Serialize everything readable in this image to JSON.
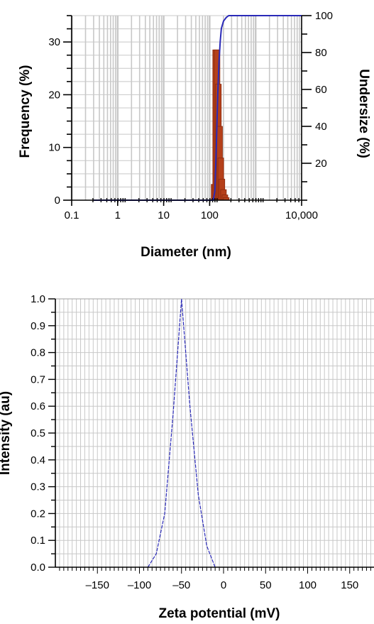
{
  "chart_data": [
    {
      "type": "bar",
      "description_series": "size distribution histogram with cumulative undersize line",
      "xlabel": "Diameter (nm)",
      "ylabel": "Frequency (%)",
      "y2label": "Undersize (%)",
      "x_scale": "log",
      "xlim": [
        0.1,
        10000
      ],
      "ylim": [
        0,
        35
      ],
      "y2lim": [
        0,
        100
      ],
      "x_tick_labels": [
        "0.1",
        "1",
        "10",
        "100",
        "10,000"
      ],
      "x_tick_values": [
        0.1,
        1,
        10,
        100,
        10000
      ],
      "y_tick_labels": [
        "0",
        "10",
        "20",
        "30"
      ],
      "y_tick_values": [
        0,
        10,
        20,
        30
      ],
      "y2_tick_labels": [
        "20",
        "40",
        "60",
        "80",
        "100"
      ],
      "y2_tick_values": [
        20,
        40,
        60,
        80,
        100
      ],
      "grid": true,
      "bars": {
        "color": "#b5401a",
        "x": [
          125,
          135,
          145,
          155,
          165,
          175,
          185,
          200,
          215,
          230
        ],
        "values": [
          3,
          28.5,
          28.5,
          22,
          14,
          8,
          4,
          2,
          1,
          0.5
        ]
      },
      "line": {
        "color": "#2a2ab8",
        "x": [
          0.3,
          100,
          120,
          130,
          140,
          150,
          160,
          170,
          180,
          200,
          230,
          260,
          300,
          10000
        ],
        "values": [
          0,
          0,
          0,
          5,
          30,
          57,
          75,
          86,
          93,
          97,
          99,
          100,
          100,
          100
        ]
      }
    },
    {
      "type": "line",
      "xlabel": "Zeta potential (mV)",
      "ylabel": "Intensity (au)",
      "xlim": [
        -200,
        200
      ],
      "ylim": [
        0,
        1.0
      ],
      "x_tick_labels": [
        "–150",
        "–100",
        "–50",
        "0",
        "50",
        "100",
        "150"
      ],
      "x_tick_values": [
        -150,
        -100,
        -50,
        0,
        50,
        100,
        150
      ],
      "y_tick_labels": [
        "0.0",
        "0.1",
        "0.2",
        "0.3",
        "0.4",
        "0.5",
        "0.6",
        "0.7",
        "0.8",
        "0.9",
        "1.0"
      ],
      "y_tick_values": [
        0,
        0.1,
        0.2,
        0.3,
        0.4,
        0.5,
        0.6,
        0.7,
        0.8,
        0.9,
        1.0
      ],
      "grid": true,
      "series": [
        {
          "color": "#2a2ab8",
          "x": [
            -90,
            -80,
            -70,
            -60,
            -50,
            -40,
            -30,
            -20,
            -10
          ],
          "values": [
            0.0,
            0.05,
            0.2,
            0.57,
            1.0,
            0.6,
            0.27,
            0.08,
            0.0
          ]
        }
      ]
    }
  ]
}
